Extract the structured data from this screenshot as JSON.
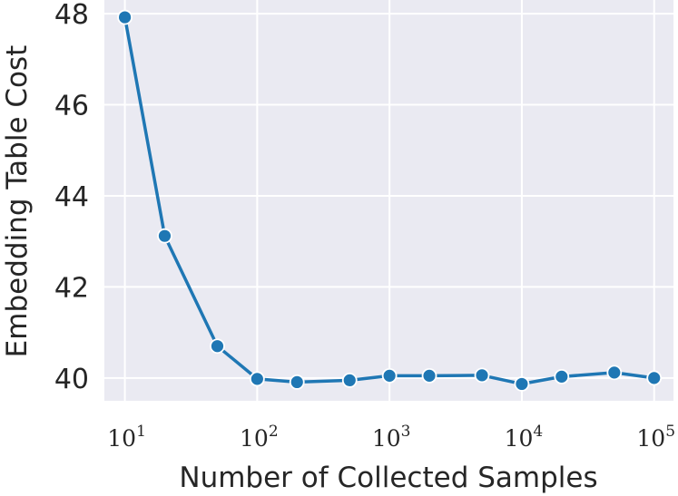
{
  "chart_data": {
    "type": "line",
    "title": "",
    "xlabel": "Number of Collected Samples",
    "ylabel": "Embedding Table Cost",
    "xscale": "log",
    "xlim": [
      7,
      140000
    ],
    "ylim": [
      39.5,
      48.3
    ],
    "grid": true,
    "legend": "none",
    "x_ticks": [
      {
        "value": 10,
        "base": "10",
        "exp": "1"
      },
      {
        "value": 100,
        "base": "10",
        "exp": "2"
      },
      {
        "value": 1000,
        "base": "10",
        "exp": "3"
      },
      {
        "value": 10000,
        "base": "10",
        "exp": "4"
      },
      {
        "value": 100000,
        "base": "10",
        "exp": "5"
      }
    ],
    "y_ticks": [
      {
        "value": 40,
        "label": "40"
      },
      {
        "value": 42,
        "label": "42"
      },
      {
        "value": 44,
        "label": "44"
      },
      {
        "value": 46,
        "label": "46"
      },
      {
        "value": 48,
        "label": "48"
      }
    ],
    "series": [
      {
        "color": "#1f77b4",
        "x": [
          10,
          20,
          50,
          100,
          200,
          500,
          1000,
          2000,
          5000,
          10000,
          20000,
          50000,
          100000
        ],
        "y": [
          47.92,
          43.12,
          40.7,
          39.98,
          39.91,
          39.95,
          40.05,
          40.05,
          40.06,
          39.87,
          40.03,
          40.12,
          40.0
        ]
      }
    ]
  },
  "colors": {
    "plot_background": "#eaeaf2",
    "grid": "#ffffff",
    "line": "#1f77b4",
    "text": "#262626"
  }
}
